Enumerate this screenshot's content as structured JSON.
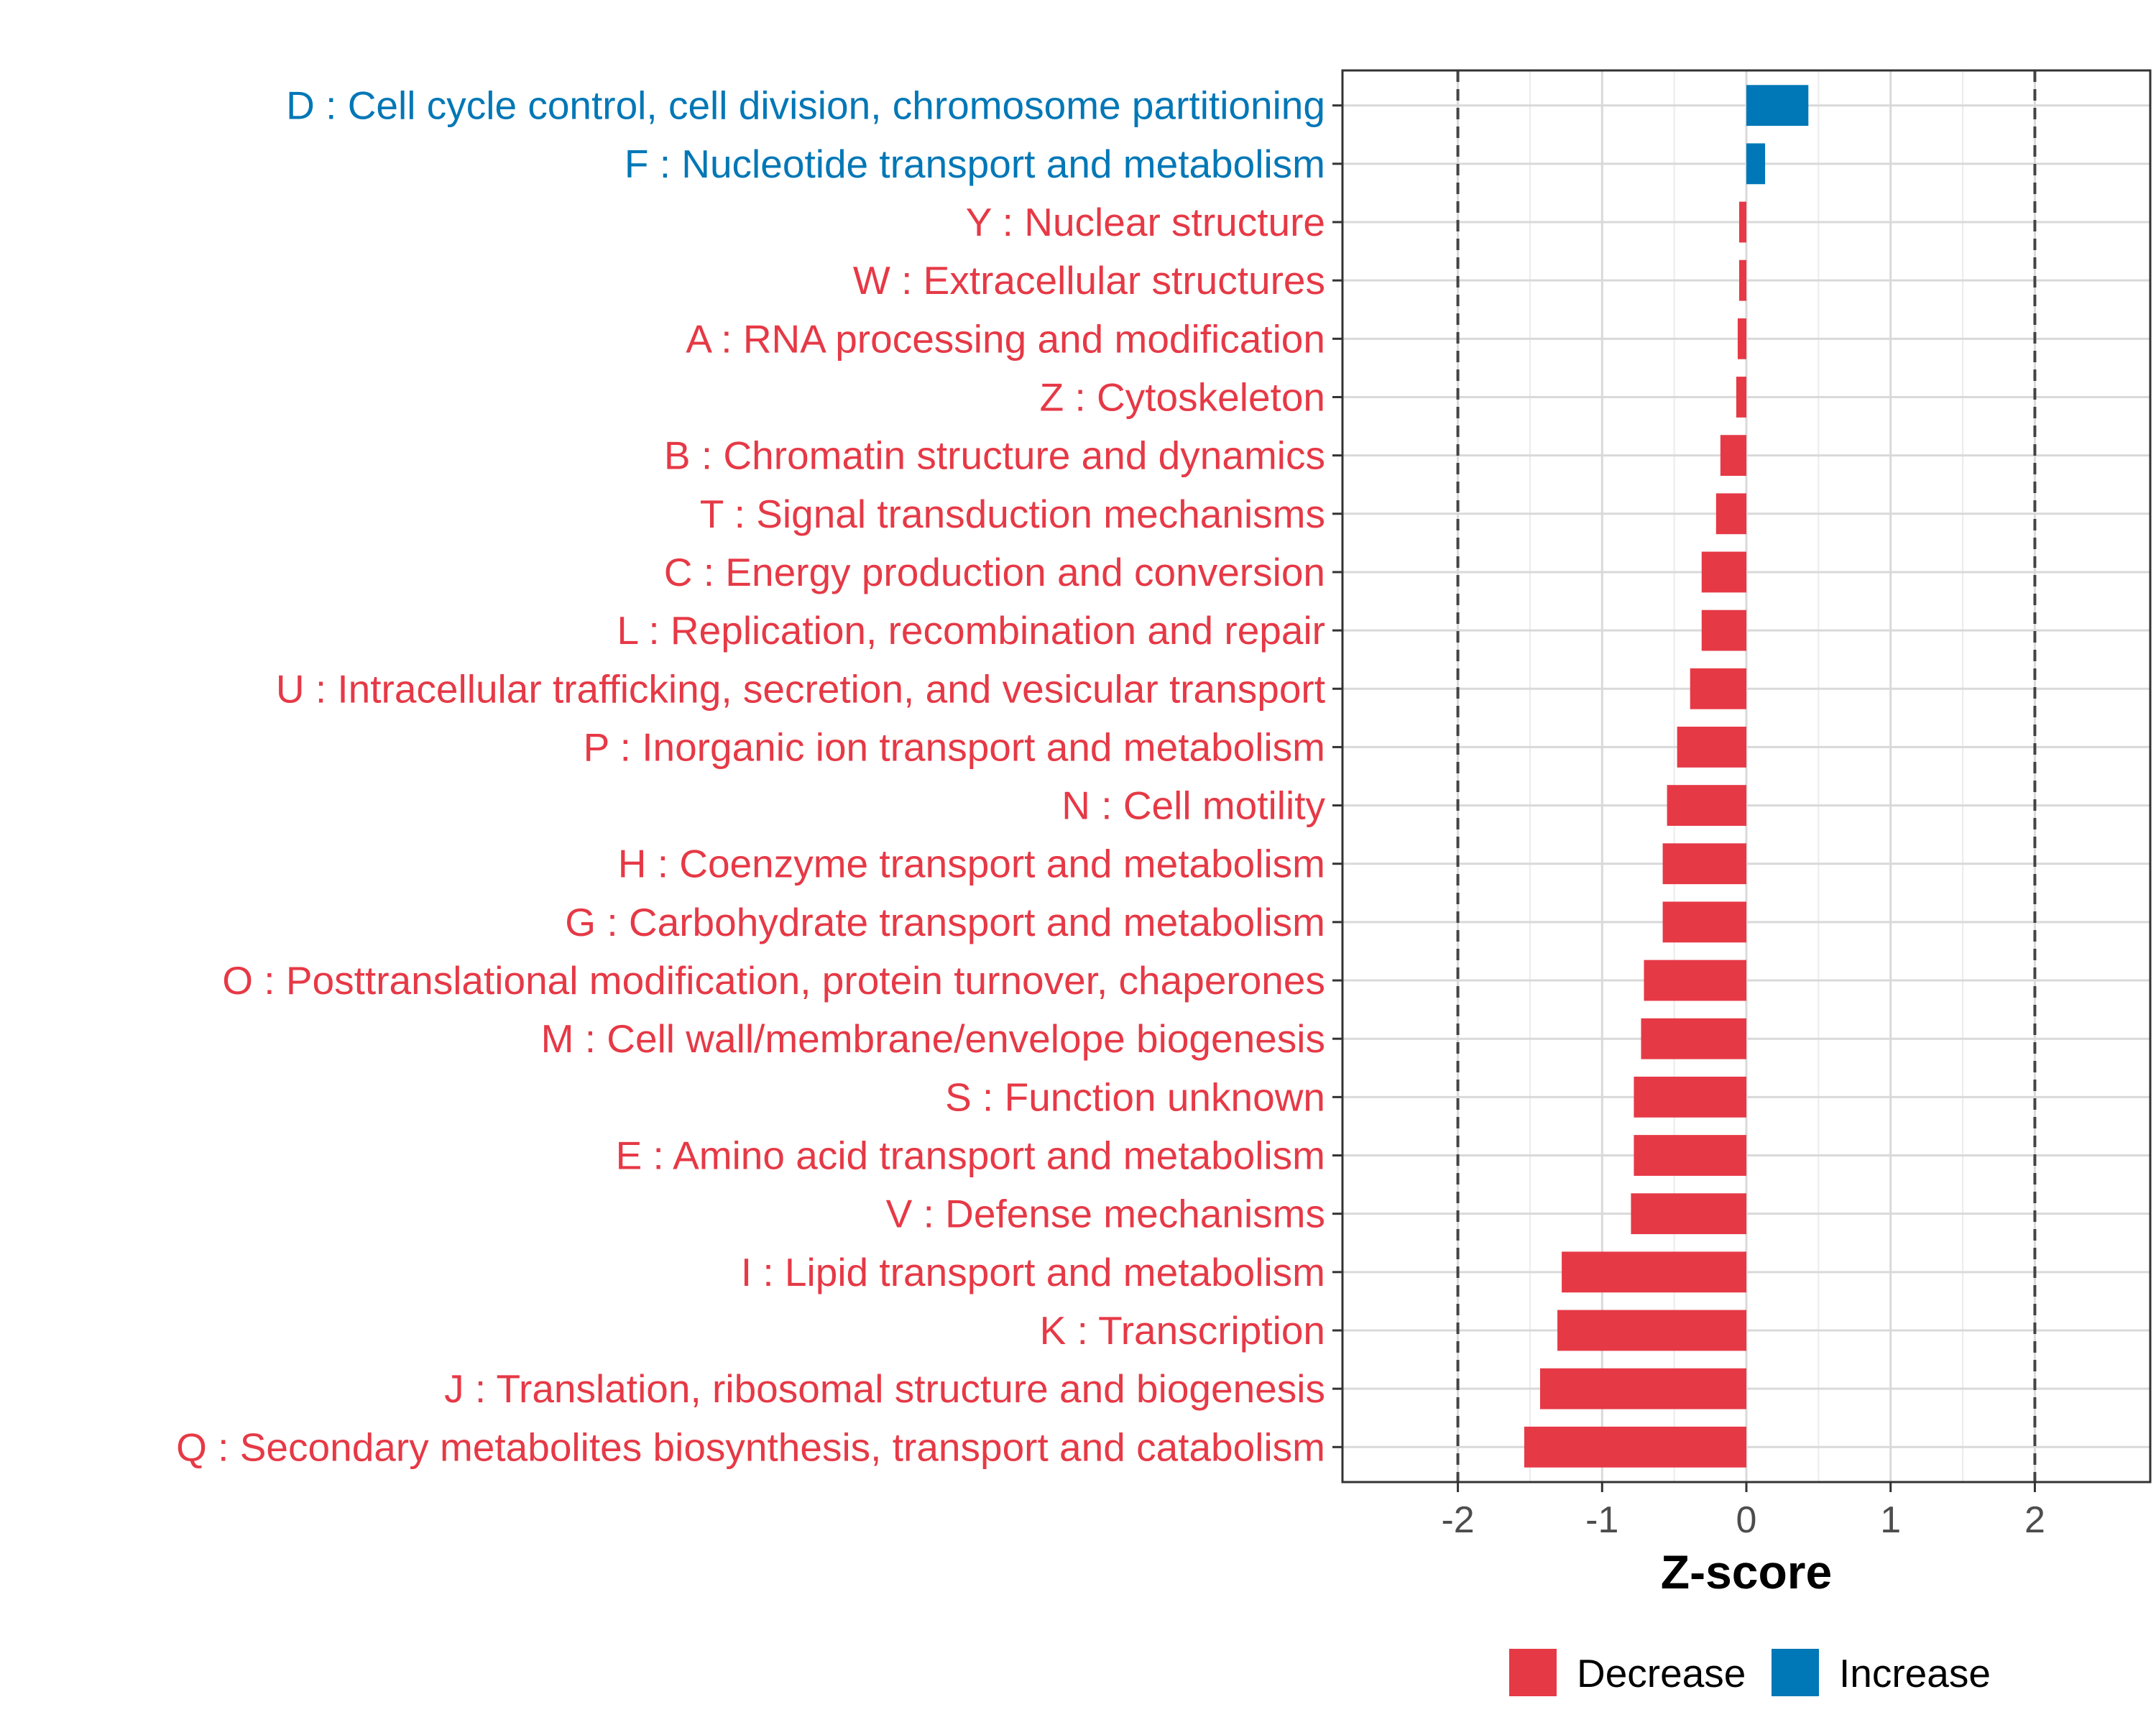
{
  "chart_data": {
    "type": "bar",
    "orientation": "horizontal",
    "categories": [
      "D : Cell cycle control, cell division, chromosome partitioning",
      "F : Nucleotide transport and metabolism",
      "Y : Nuclear structure",
      "W : Extracellular structures",
      "A : RNA processing and modification",
      "Z : Cytoskeleton",
      "B : Chromatin structure and dynamics",
      "T : Signal transduction mechanisms",
      "C : Energy production and conversion",
      "L : Replication, recombination and repair",
      "U : Intracellular trafficking, secretion, and vesicular transport",
      "P : Inorganic ion transport and metabolism",
      "N : Cell motility",
      "H : Coenzyme transport and metabolism",
      "G : Carbohydrate transport and metabolism",
      "O : Posttranslational modification, protein turnover, chaperones",
      "M : Cell wall/membrane/envelope biogenesis",
      "S : Function unknown",
      "E : Amino acid transport and metabolism",
      "V : Defense mechanisms",
      "I : Lipid transport and metabolism",
      "K : Transcription",
      "J : Translation, ribosomal structure and biogenesis",
      "Q : Secondary metabolites biosynthesis, transport and catabolism"
    ],
    "values": [
      0.43,
      0.13,
      -0.05,
      -0.05,
      -0.06,
      -0.07,
      -0.18,
      -0.21,
      -0.31,
      -0.31,
      -0.39,
      -0.48,
      -0.55,
      -0.58,
      -0.58,
      -0.71,
      -0.73,
      -0.78,
      -0.78,
      -0.8,
      -1.28,
      -1.31,
      -1.43,
      -1.54
    ],
    "groups": [
      "Increase",
      "Increase",
      "Decrease",
      "Decrease",
      "Decrease",
      "Decrease",
      "Decrease",
      "Decrease",
      "Decrease",
      "Decrease",
      "Decrease",
      "Decrease",
      "Decrease",
      "Decrease",
      "Decrease",
      "Decrease",
      "Decrease",
      "Decrease",
      "Decrease",
      "Decrease",
      "Decrease",
      "Decrease",
      "Decrease",
      "Decrease"
    ],
    "xlabel": "Z-score",
    "ylabel": "",
    "xlim": [
      -2.8,
      2.8
    ],
    "xticks": [
      -2,
      -1,
      0,
      1,
      2
    ],
    "xtick_labels": [
      "-2",
      "-1",
      "0",
      "1",
      "2"
    ],
    "reference_lines": [
      -2,
      2
    ],
    "grid": true,
    "legend": {
      "position": "bottom",
      "entries": [
        {
          "label": "Decrease",
          "color": "#e63946"
        },
        {
          "label": "Increase",
          "color": "#0077b6"
        }
      ]
    },
    "colors": {
      "Decrease": "#e63946",
      "Increase": "#0077b6"
    }
  }
}
